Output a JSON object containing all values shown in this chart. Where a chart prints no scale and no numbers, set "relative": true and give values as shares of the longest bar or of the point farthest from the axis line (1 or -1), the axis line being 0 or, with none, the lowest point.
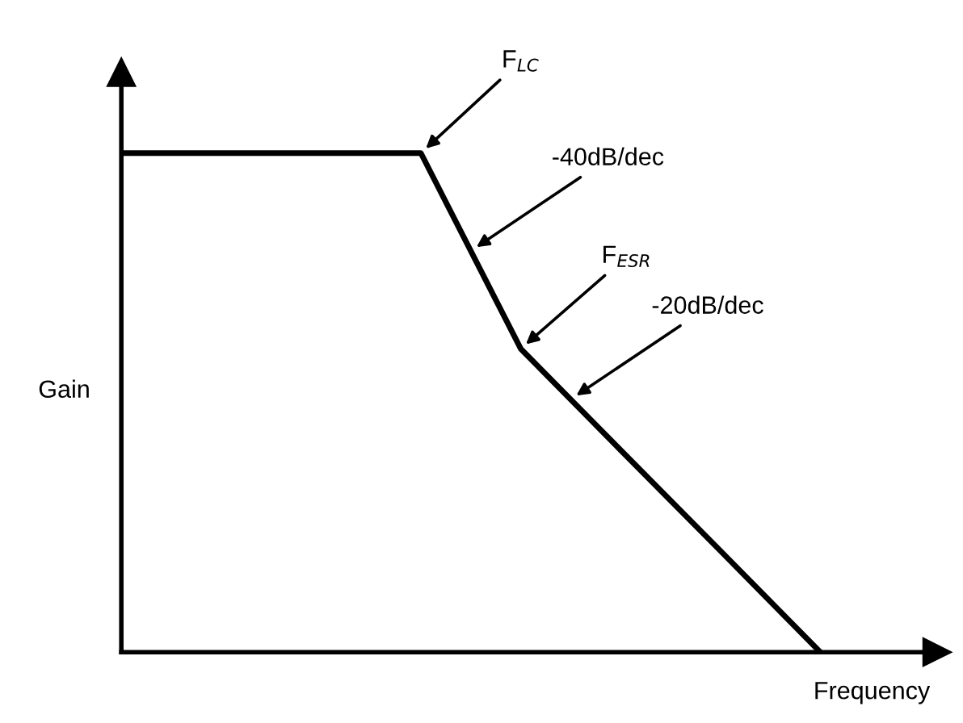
{
  "chart_data": {
    "type": "line",
    "relative": true,
    "xlabel": "Frequency",
    "ylabel": "Gain",
    "categories": [
      null,
      null,
      null,
      null,
      null,
      null,
      null,
      null
    ],
    "tick_labels": false,
    "series": [
      {
        "color": "#000000",
        "values": [
          1,
          1,
          1,
          1,
          0.608,
          0.405,
          0.203,
          0
        ]
      }
    ],
    "annotations": [
      "F$_{LC}$",
      "-40dB/dec",
      "F$_{ESR}$",
      "-20dB/dec"
    ],
    "legend": false,
    "marker": "none",
    "line_style": "solid"
  }
}
